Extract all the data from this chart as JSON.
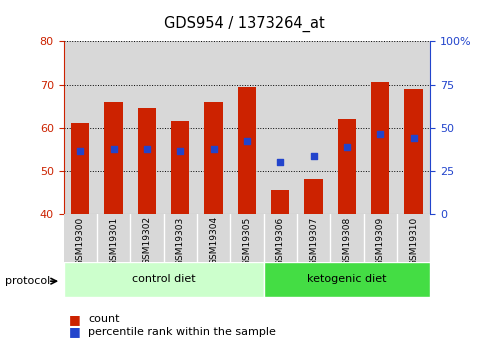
{
  "title": "GDS954 / 1373264_at",
  "samples": [
    "GSM19300",
    "GSM19301",
    "GSM19302",
    "GSM19303",
    "GSM19304",
    "GSM19305",
    "GSM19306",
    "GSM19307",
    "GSM19308",
    "GSM19309",
    "GSM19310"
  ],
  "bar_values": [
    61,
    66,
    64.5,
    61.5,
    66,
    69.5,
    45.5,
    48,
    62,
    70.5,
    69
  ],
  "percentile_values": [
    54.5,
    55,
    55,
    54.5,
    55,
    57,
    52,
    53.5,
    55.5,
    58.5,
    57.5
  ],
  "ymin": 40,
  "ymax": 80,
  "yticks_left": [
    40,
    50,
    60,
    70,
    80
  ],
  "yticks_right": [
    0,
    25,
    50,
    75,
    100
  ],
  "bar_color": "#cc2200",
  "dot_color": "#2244cc",
  "bar_width": 0.55,
  "groups": [
    {
      "label": "control diet",
      "start": 0,
      "end": 5,
      "color": "#ccffcc",
      "dark_color": "#44dd44"
    },
    {
      "label": "ketogenic diet",
      "start": 6,
      "end": 10,
      "color": "#44dd44",
      "dark_color": "#44dd44"
    }
  ],
  "left_axis_color": "#cc2200",
  "right_axis_color": "#2244cc",
  "legend_count_label": "count",
  "legend_percentile_label": "percentile rank within the sample",
  "grid_color": "#000000",
  "col_bg_color": "#d8d8d8"
}
